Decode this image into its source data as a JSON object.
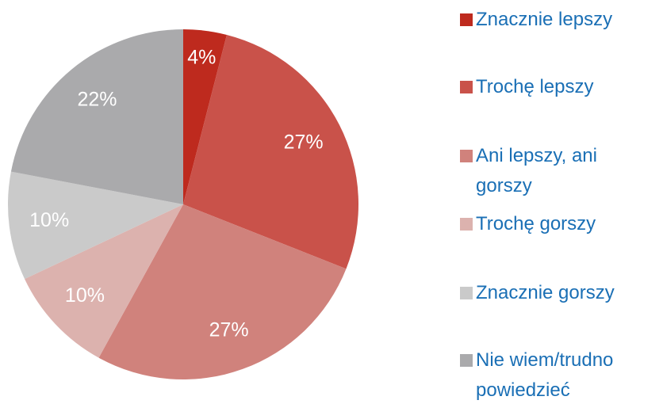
{
  "chart_data": {
    "type": "pie",
    "categories": [
      "Znacznie lepszy",
      "Trochę lepszy",
      "Ani lepszy, ani gorszy",
      "Trochę gorszy",
      "Znacznie gorszy",
      "Nie wiem/trudno powiedzieć"
    ],
    "values": [
      4,
      27,
      27,
      10,
      10,
      22
    ],
    "value_labels": [
      "4%",
      "27%",
      "27%",
      "10%",
      "10%",
      "22%"
    ],
    "colors": [
      "#be2a1e",
      "#c9524a",
      "#d0827c",
      "#dcb2ae",
      "#cacaca",
      "#aaaaac"
    ],
    "legend": "right"
  }
}
